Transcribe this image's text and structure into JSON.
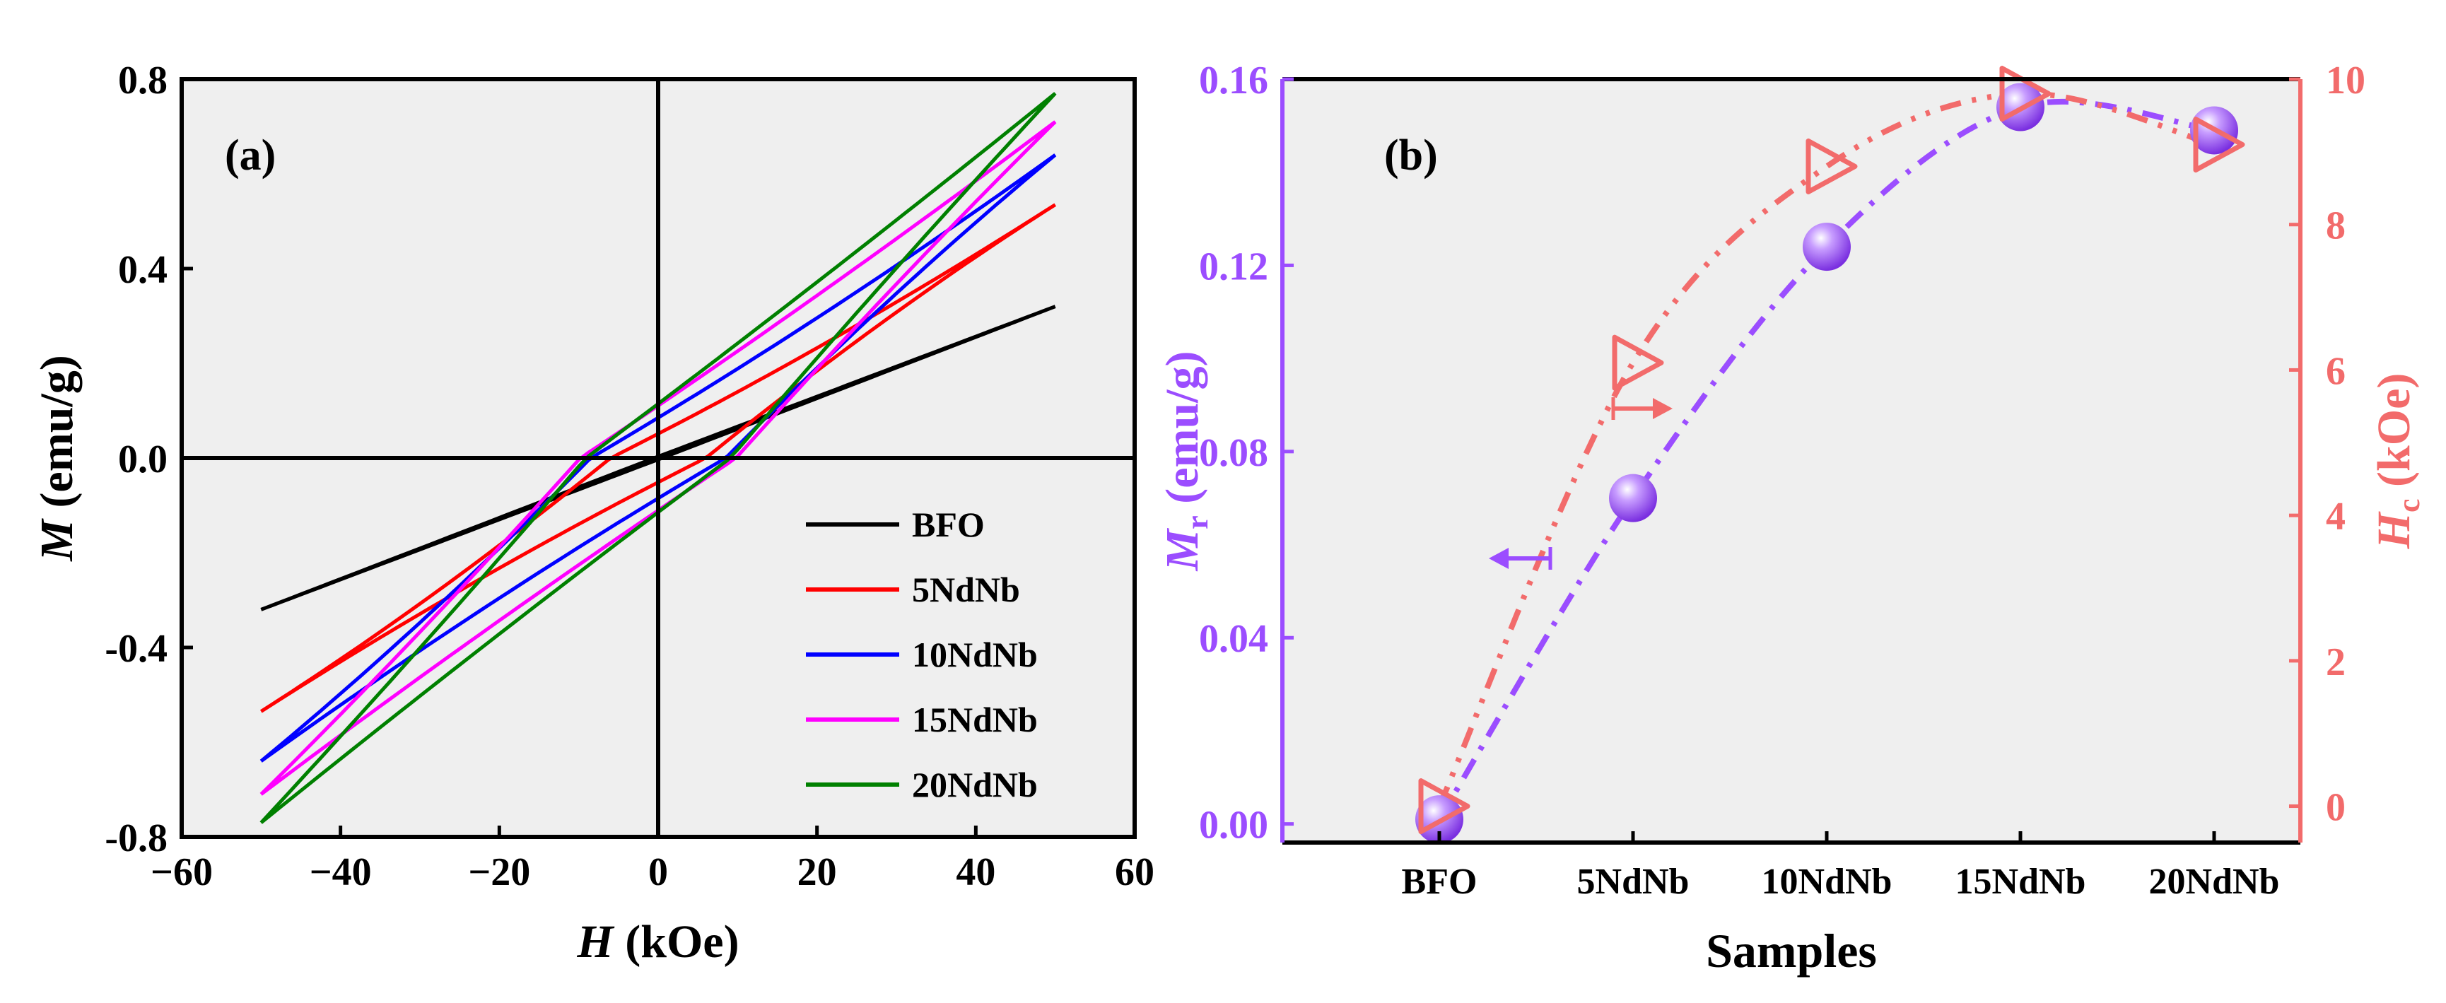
{
  "colors": {
    "panel_bg": "#efefef",
    "axis": "#000000",
    "mr_color": "#9b4dff",
    "hc_color": "#f26b6b"
  },
  "chart_data": [
    {
      "type": "line",
      "panel_tag": "(a)",
      "xlabel_main": "H",
      "xlabel_unit": " (kOe)",
      "ylabel_main": "M",
      "ylabel_unit": " (emu/g)",
      "xlim": [
        -60,
        60
      ],
      "ylim": [
        -0.8,
        0.8
      ],
      "xticks": [
        -60,
        -40,
        -20,
        0,
        20,
        40,
        60
      ],
      "xtick_labels": [
        "−60",
        "−40",
        "−20",
        "0",
        "20",
        "40",
        "60"
      ],
      "yticks": [
        0.8,
        0.4,
        0.0,
        -0.4,
        -0.8
      ],
      "ytick_labels": [
        "0.8",
        "0.4",
        "0.0",
        "-0.4",
        "-0.8"
      ],
      "legend_position": "bottom-right",
      "series": [
        {
          "name": "BFO",
          "color": "#000000",
          "Hmax": 50,
          "Ms": 0.32,
          "Mr": 0.005,
          "Hc": 0.5,
          "curv": 0.0
        },
        {
          "name": "5NdNb",
          "color": "#ff0000",
          "Hmax": 50,
          "Ms": 0.535,
          "Mr": 0.075,
          "Hc": 6.0,
          "curv": 0.12
        },
        {
          "name": "10NdNb",
          "color": "#0000ff",
          "Hmax": 50,
          "Ms": 0.64,
          "Mr": 0.125,
          "Hc": 8.5,
          "curv": 0.1
        },
        {
          "name": "15NdNb",
          "color": "#ff00ff",
          "Hmax": 50,
          "Ms": 0.71,
          "Mr": 0.155,
          "Hc": 9.8,
          "curv": 0.06
        },
        {
          "name": "20NdNb",
          "color": "#008000",
          "Hmax": 50,
          "Ms": 0.77,
          "Mr": 0.15,
          "Hc": 9.1,
          "curv": 0.04
        }
      ]
    },
    {
      "type": "scatter",
      "panel_tag": "(b)",
      "xlabel": "Samples",
      "categories": [
        "BFO",
        "5NdNb",
        "10NdNb",
        "15NdNb",
        "20NdNb"
      ],
      "left_axis": {
        "label_main": "M",
        "label_sub": "r",
        "label_unit": " (emu/g)",
        "ylim": [
          -0.004,
          0.16
        ],
        "ticks": [
          0.0,
          0.04,
          0.08,
          0.12,
          0.16
        ],
        "tick_labels": [
          "0.00",
          "0.04",
          "0.08",
          "0.12",
          "0.16"
        ]
      },
      "right_axis": {
        "label_main": "H",
        "label_sub": "c",
        "label_unit": " (kOe)",
        "ylim": [
          -0.5,
          10
        ],
        "ticks": [
          0,
          2,
          4,
          6,
          8,
          10
        ],
        "tick_labels": [
          "0",
          "2",
          "4",
          "6",
          "8",
          "10"
        ]
      },
      "series": [
        {
          "name": "Mr",
          "axis": "left",
          "values": [
            0.001,
            0.07,
            0.124,
            0.154,
            0.149
          ]
        },
        {
          "name": "Hc",
          "axis": "right",
          "values": [
            0.0,
            6.1,
            8.8,
            9.8,
            9.1
          ]
        }
      ]
    }
  ]
}
